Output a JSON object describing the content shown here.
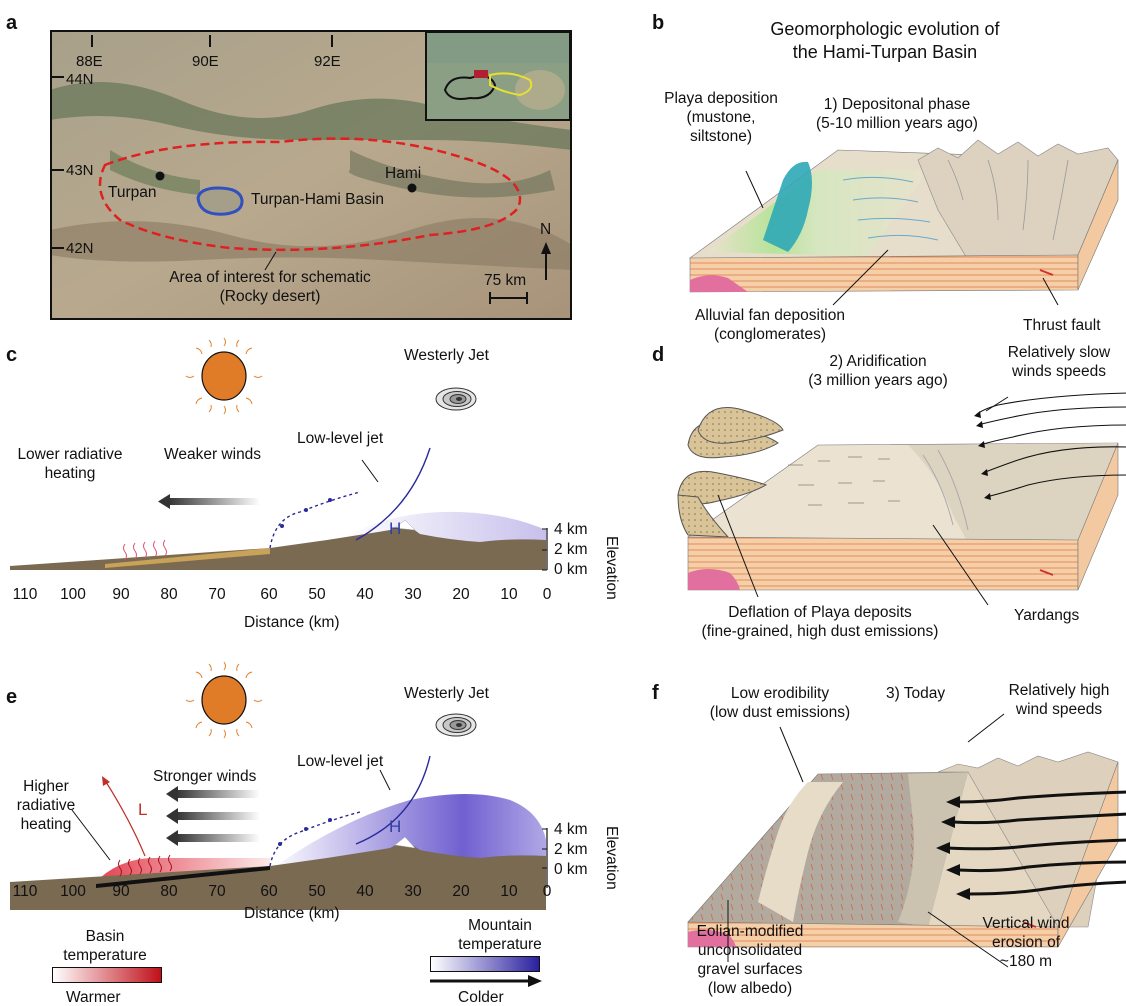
{
  "panels": {
    "a": {
      "label": "a",
      "lon_ticks": [
        "88E",
        "90E",
        "92E"
      ],
      "lat_ticks": [
        "44N",
        "43N",
        "42N"
      ],
      "places": [
        "Turpan",
        "Hami"
      ],
      "basin_label": "Turpan-Hami Basin",
      "aoi_label": [
        "Area of interest for schematic",
        "(Rocky desert)"
      ],
      "north": "N",
      "scale": "75 km",
      "colors": {
        "aoi_outline": "#e02020",
        "basin_outline": "#3050c0",
        "inset_marker": "#b02030"
      }
    },
    "b": {
      "label": "b",
      "title": [
        "Geomorphologic evolution of",
        "the Hami-Turpan Basin"
      ],
      "playa": [
        "Playa deposition",
        "(mustone,",
        "siltstone)"
      ],
      "phase": [
        "1) Depositonal phase",
        "(5-10 million years ago)"
      ],
      "fan": [
        "Alluvial fan deposition",
        "(conglomerates)"
      ],
      "fault": "Thrust fault"
    },
    "c": {
      "label": "c",
      "jet": "Westerly Jet",
      "llj": "Low-level jet",
      "heating": [
        "Lower radiative",
        "heating"
      ],
      "winds": "Weaker winds",
      "H": "H"
    },
    "d": {
      "label": "d",
      "phase": [
        "2) Aridification",
        "(3 million years ago)"
      ],
      "slow": [
        "Relatively slow",
        "winds speeds"
      ],
      "deflation": [
        "Deflation of Playa deposits",
        "(fine-grained, high dust emissions)"
      ],
      "yardangs": "Yardangs"
    },
    "e": {
      "label": "e",
      "jet": "Westerly Jet",
      "llj": "Low-level jet",
      "heating": [
        "Higher",
        "radiative",
        "heating"
      ],
      "winds": "Stronger winds",
      "H": "H",
      "L": "L",
      "basin_temp": [
        "Basin",
        "temperature"
      ],
      "warmer": "Warmer",
      "mountain_temp": [
        "Mountain",
        "temperature"
      ],
      "colder": "Colder",
      "colors": {
        "warm": "#c0101a",
        "cold": "#2a20a0"
      }
    },
    "f": {
      "label": "f",
      "phase": "3) Today",
      "low_erod": [
        "Low erodibility",
        "(low dust emissions)"
      ],
      "high": [
        "Relatively high",
        "wind speeds"
      ],
      "eolian": [
        "Eolian-modified",
        "unconsolidated",
        "gravel surfaces",
        "(low albedo)"
      ],
      "vertical": [
        "Vertical wind",
        "erosion of",
        "~180 m"
      ]
    }
  },
  "profile_axes": {
    "x_label": "Distance (km)",
    "x_ticks": [
      "110",
      "100",
      "90",
      "80",
      "70",
      "60",
      "50",
      "40",
      "30",
      "20",
      "10",
      "0"
    ],
    "elev_label": "Elevation",
    "elev_ticks": [
      "4 km",
      "2 km",
      "0 km"
    ]
  }
}
